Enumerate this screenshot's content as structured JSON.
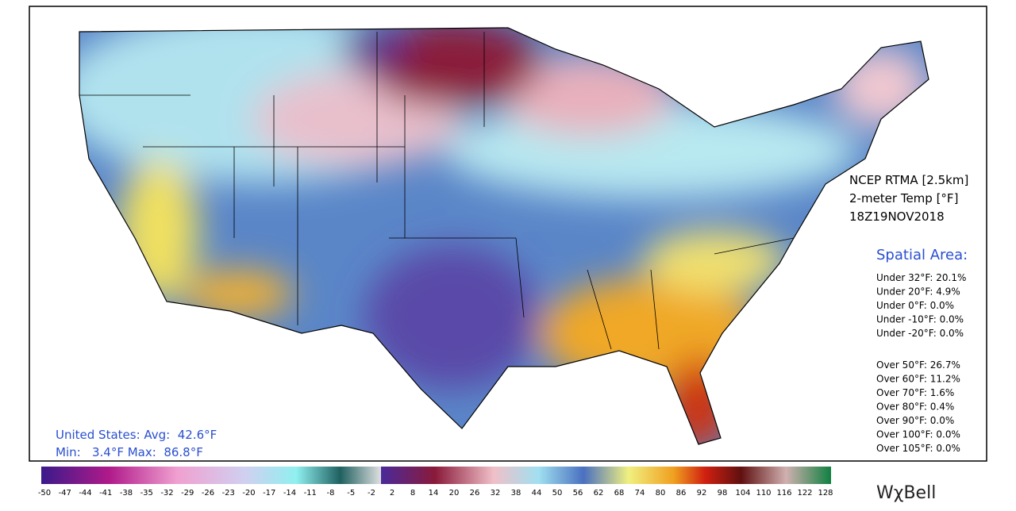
{
  "map": {
    "product": "NCEP RTMA [2.5km]",
    "variable": "2-meter Temp [°F]",
    "time": "18Z19NOV2018",
    "spatial_title": "Spatial Area:",
    "under": [
      "Under 32°F: 20.1%",
      "Under 20°F: 4.9%",
      "Under 0°F: 0.0%",
      "Under -10°F: 0.0%",
      "Under -20°F: 0.0%"
    ],
    "over": [
      "Over 50°F: 26.7%",
      "Over 60°F: 11.2%",
      "Over 70°F: 1.6%",
      "Over 80°F: 0.4%",
      "Over 90°F: 0.0%",
      "Over 100°F: 0.0%",
      "Over 105°F: 0.0%"
    ],
    "summary": [
      "United States: Avg:  42.6°F",
      "Min:   3.4°F Max:  86.8°F"
    ],
    "colorbar": {
      "cold_ticks": [
        -50,
        -47,
        -44,
        -41,
        -38,
        -35,
        -32,
        -29,
        -26,
        -23,
        -20,
        -17,
        -14,
        -11,
        -8,
        -5,
        -2
      ],
      "warm_ticks": [
        2,
        8,
        14,
        20,
        26,
        32,
        38,
        44,
        50,
        56,
        62,
        68,
        74,
        80,
        86,
        92,
        98,
        104,
        110,
        116,
        122,
        128
      ]
    },
    "brand": "WχBell"
  }
}
